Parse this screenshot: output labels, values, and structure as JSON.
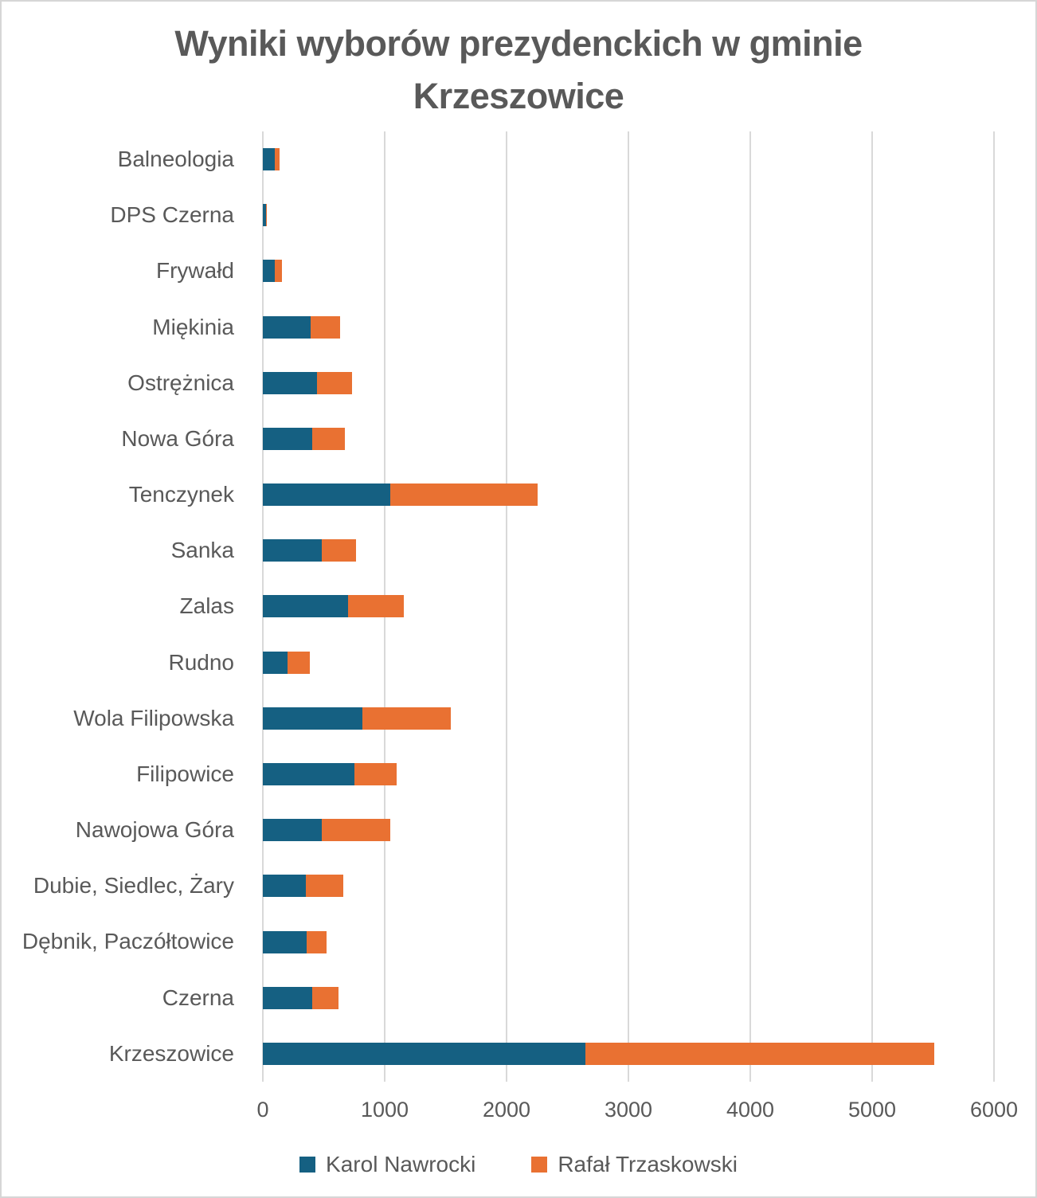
{
  "title": "Wyniki wyborów prezydenckich w gminie Krzeszowice",
  "colors": {
    "nawrocki_blue": "#156082",
    "trzaskowski_orange": "#E97132",
    "text_gray": "#595959",
    "gridline_gray": "#D9D9D9"
  },
  "legend": {
    "items": [
      {
        "label": "Karol Nawrocki",
        "color": "#156082"
      },
      {
        "label": "Rafał Trzaskowski",
        "color": "#E97132"
      }
    ],
    "position": "bottom"
  },
  "chart_data": {
    "type": "bar",
    "orientation": "horizontal",
    "stacked": true,
    "title": "Wyniki wyborów prezydenckich w gminie Krzeszowice",
    "xlabel": "",
    "ylabel": "",
    "xlim": [
      0,
      6000
    ],
    "x_ticks": [
      0,
      1000,
      2000,
      3000,
      4000,
      5000,
      6000
    ],
    "grid": "vertical",
    "legend_position": "bottom",
    "categories": [
      "Balneologia",
      "DPS Czerna",
      "Frywałd",
      "Miękinia",
      "Ostrężnica",
      "Nowa Góra",
      "Tenczynek",
      "Sanka",
      "Zalas",
      "Rudno",
      "Wola Filipowska",
      "Filipowice",
      "Nawojowa Góra",
      "Dubie, Siedlec, Żary",
      "Dębnik, Paczółtowice",
      "Czerna",
      "Krzeszowice"
    ],
    "series": [
      {
        "name": "Karol Nawrocki",
        "color": "#156082",
        "values": [
          95,
          28,
          100,
          395,
          445,
          408,
          1043,
          481,
          697,
          203,
          815,
          749,
          485,
          356,
          360,
          404,
          2650
        ]
      },
      {
        "name": "Rafał Trzaskowski",
        "color": "#E97132",
        "values": [
          42,
          7,
          57,
          240,
          290,
          268,
          1213,
          282,
          459,
          181,
          725,
          347,
          560,
          301,
          166,
          214,
          2860
        ]
      }
    ]
  }
}
